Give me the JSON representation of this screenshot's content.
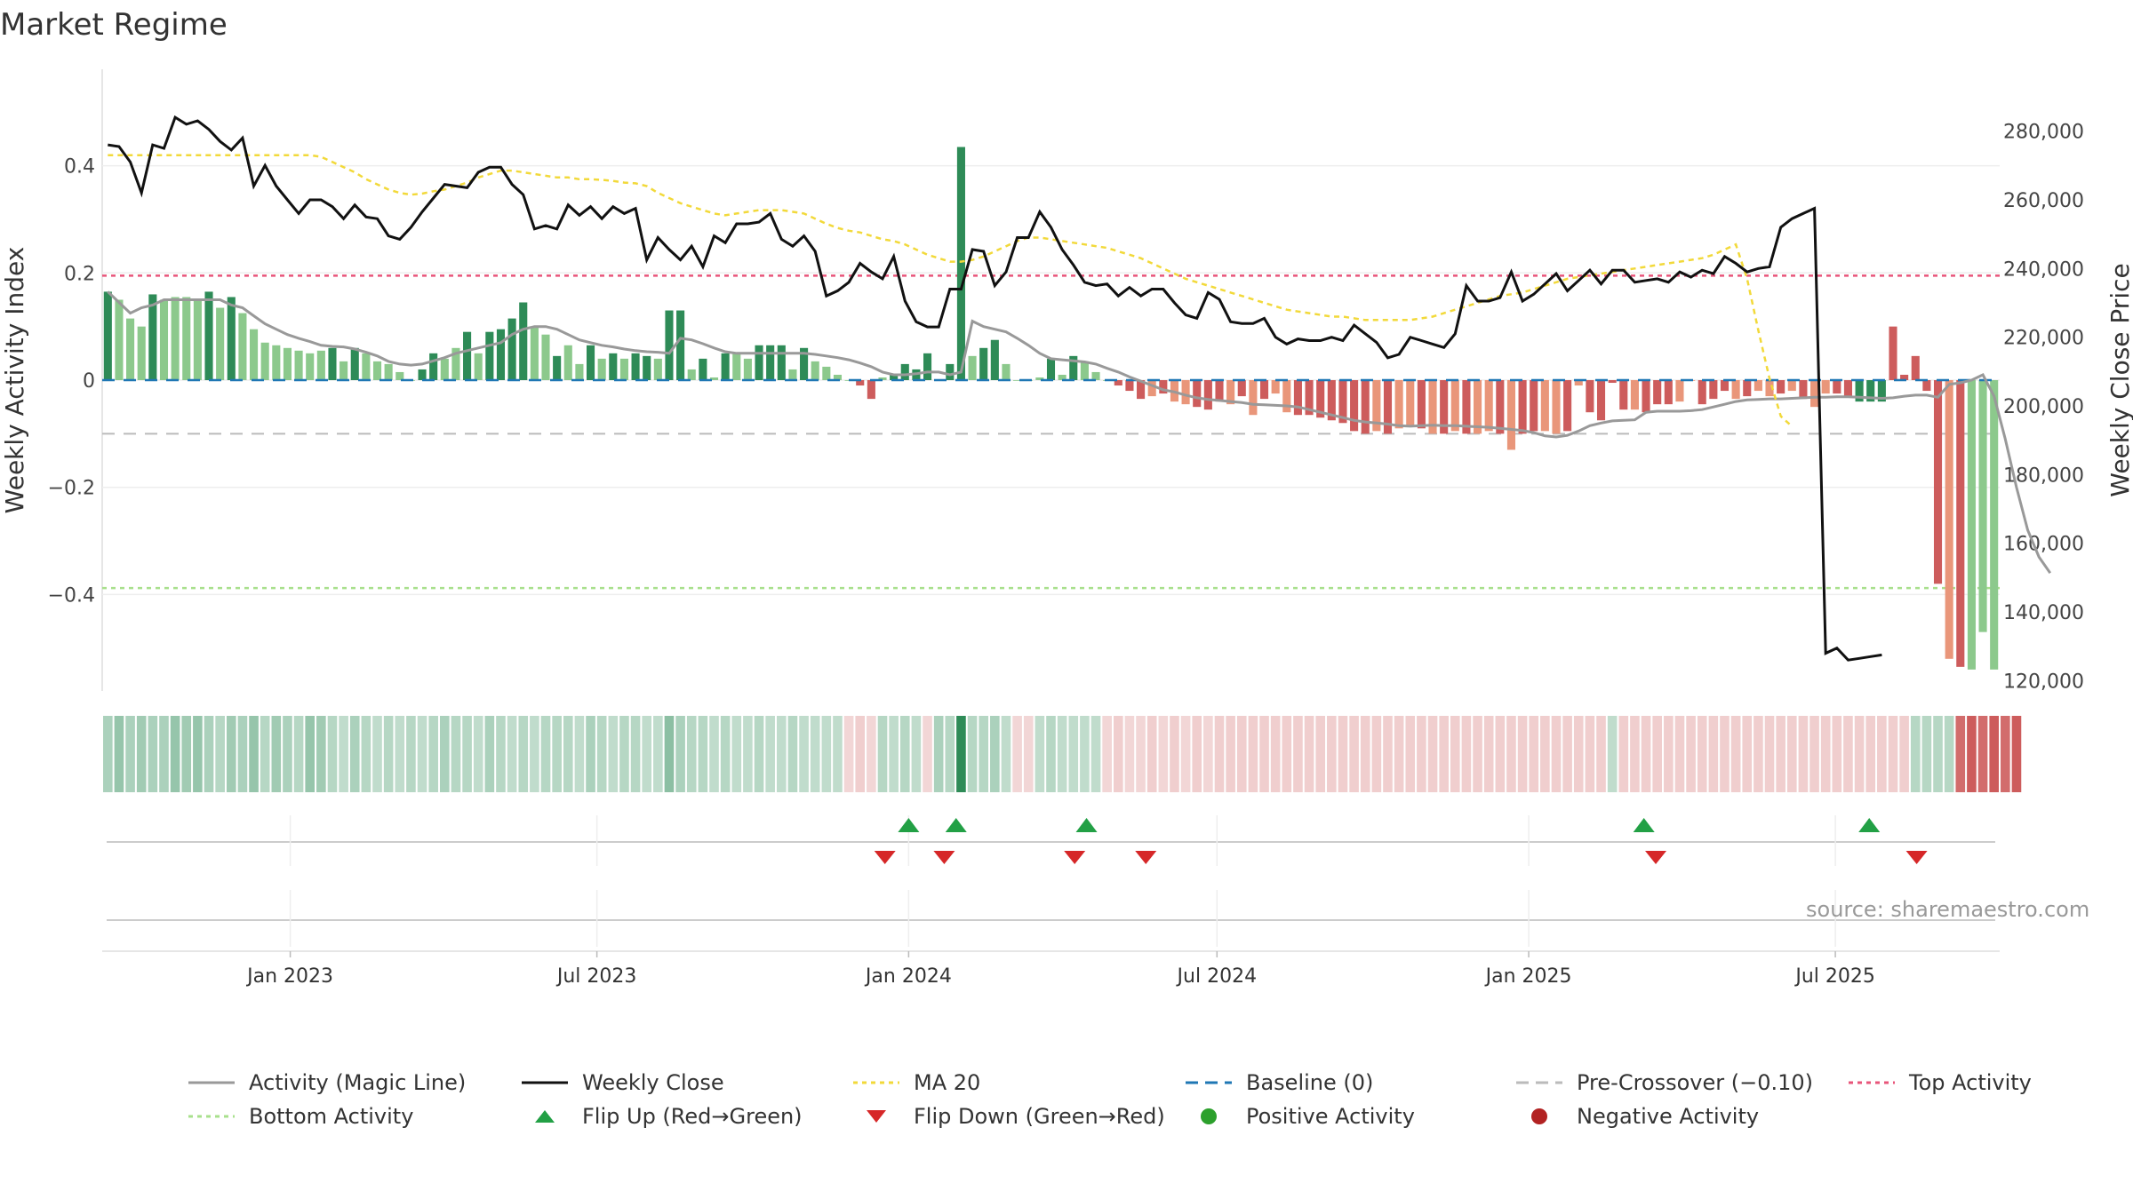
{
  "title": "Market Regime",
  "source_text": "source: sharemaestro.com",
  "colors": {
    "green_dark": "#2e8b57",
    "green_light": "#8cc98c",
    "red_dark": "#cd5c5c",
    "red_light": "#e9967a",
    "magic_line": "#999999",
    "close_line": "#111111",
    "ma_line": "#f2d93a",
    "baseline": "#1f77b4",
    "precross": "#bbbbbb",
    "top": "#e8557a",
    "bottom": "#a8e08c",
    "flip_up": "#22a045",
    "flip_down": "#d62728",
    "positive": "#2ca02c",
    "negative": "#b22222"
  },
  "chart_data": {
    "type": "bar",
    "title": "Market Regime",
    "ylabel_left": "Weekly Activity Index",
    "ylabel_right": "Weekly Close Price",
    "ylim_left": [
      -0.58,
      0.58
    ],
    "ylim_right": [
      117000,
      298000
    ],
    "y_ticks_left": [
      0.4,
      0.2,
      0,
      -0.2,
      -0.4
    ],
    "y_tick_labels_left": [
      "0.4",
      "0.2",
      "0",
      "−0.2",
      "−0.4"
    ],
    "y_ticks_right": [
      280000,
      260000,
      240000,
      220000,
      200000,
      180000,
      160000,
      140000,
      120000
    ],
    "y_tick_labels_right": [
      "280,000",
      "260,000",
      "240,000",
      "220,000",
      "200,000",
      "180,000",
      "160,000",
      "140,000",
      "120,000"
    ],
    "x_start": "2022-09-12",
    "x_end": "2025-10-06",
    "x_tick_labels": [
      "Jan 2023",
      "Jul 2023",
      "Jan 2024",
      "Jul 2024",
      "Jan 2025",
      "Jul 2025"
    ],
    "x_ticks": [
      "2023-01-01",
      "2023-07-01",
      "2024-01-01",
      "2024-07-01",
      "2025-01-01",
      "2025-07-01"
    ],
    "reference_lines": {
      "baseline": 0,
      "pre_crossover": -0.1,
      "top_activity": 0.195,
      "bottom_activity": -0.388
    },
    "activity_index": [
      0.165,
      0.15,
      0.115,
      0.1,
      0.16,
      0.15,
      0.155,
      0.155,
      0.15,
      0.165,
      0.135,
      0.155,
      0.125,
      0.095,
      0.07,
      0.065,
      0.06,
      0.055,
      0.05,
      0.055,
      0.06,
      0.035,
      0.06,
      0.05,
      0.035,
      0.03,
      0.015,
      0.0,
      0.02,
      0.05,
      0.04,
      0.06,
      0.09,
      0.05,
      0.09,
      0.095,
      0.115,
      0.145,
      0.1,
      0.085,
      0.045,
      0.065,
      0.03,
      0.065,
      0.04,
      0.05,
      0.04,
      0.05,
      0.045,
      0.04,
      0.13,
      0.13,
      0.02,
      0.04,
      0.005,
      0.05,
      0.05,
      0.04,
      0.065,
      0.065,
      0.065,
      0.02,
      0.06,
      0.035,
      0.025,
      0.01,
      0.0,
      -0.01,
      -0.035,
      0.005,
      0.01,
      0.03,
      0.02,
      0.05,
      0.0,
      0.03,
      0.435,
      0.045,
      0.06,
      0.075,
      0.03,
      0.0,
      0.0,
      0.005,
      0.04,
      0.01,
      0.045,
      0.035,
      0.015,
      0.0,
      -0.01,
      -0.02,
      -0.035,
      -0.03,
      -0.025,
      -0.04,
      -0.045,
      -0.05,
      -0.055,
      -0.04,
      -0.045,
      -0.03,
      -0.065,
      -0.035,
      -0.025,
      -0.06,
      -0.065,
      -0.065,
      -0.07,
      -0.075,
      -0.08,
      -0.095,
      -0.1,
      -0.095,
      -0.1,
      -0.09,
      -0.085,
      -0.09,
      -0.1,
      -0.1,
      -0.095,
      -0.1,
      -0.1,
      -0.095,
      -0.1,
      -0.13,
      -0.1,
      -0.095,
      -0.095,
      -0.1,
      -0.095,
      -0.01,
      -0.06,
      -0.075,
      -0.005,
      -0.055,
      -0.055,
      -0.06,
      -0.045,
      -0.045,
      -0.04,
      0.0,
      -0.045,
      -0.035,
      -0.02,
      -0.035,
      -0.03,
      -0.02,
      -0.03,
      -0.025,
      -0.02,
      -0.035,
      -0.05,
      -0.025,
      -0.025,
      -0.03,
      -0.04,
      -0.04,
      -0.04,
      0.1,
      0.01,
      0.045,
      -0.02,
      -0.38,
      -0.52,
      -0.535,
      -0.54,
      -0.47,
      -0.54
    ],
    "activity_type": [
      "p",
      "l",
      "l",
      "l",
      "p",
      "l",
      "l",
      "l",
      "l",
      "p",
      "l",
      "p",
      "l",
      "l",
      "l",
      "l",
      "l",
      "l",
      "l",
      "l",
      "p",
      "l",
      "p",
      "l",
      "l",
      "l",
      "l",
      "l",
      "p",
      "p",
      "l",
      "l",
      "p",
      "l",
      "p",
      "p",
      "p",
      "p",
      "l",
      "l",
      "p",
      "l",
      "l",
      "p",
      "l",
      "p",
      "l",
      "p",
      "p",
      "l",
      "p",
      "p",
      "l",
      "p",
      "l",
      "p",
      "l",
      "l",
      "p",
      "p",
      "p",
      "l",
      "p",
      "l",
      "l",
      "l",
      "l",
      "n",
      "n",
      "l",
      "p",
      "p",
      "p",
      "p",
      "p",
      "p",
      "p",
      "l",
      "p",
      "p",
      "l",
      "l",
      "l",
      "l",
      "p",
      "l",
      "p",
      "l",
      "l",
      "l",
      "n",
      "n",
      "n",
      "m",
      "n",
      "m",
      "m",
      "n",
      "n",
      "n",
      "m",
      "n",
      "m",
      "n",
      "m",
      "m",
      "n",
      "n",
      "n",
      "n",
      "n",
      "n",
      "n",
      "m",
      "n",
      "m",
      "m",
      "n",
      "m",
      "n",
      "m",
      "n",
      "m",
      "m",
      "n",
      "m",
      "n",
      "n",
      "m",
      "m",
      "n",
      "m",
      "n",
      "n",
      "n",
      "n",
      "m",
      "n",
      "n",
      "n",
      "m",
      "m",
      "n",
      "n",
      "n",
      "m",
      "n",
      "m",
      "m",
      "n",
      "m",
      "n",
      "m",
      "m",
      "n",
      "n",
      "p",
      "p",
      "p",
      "n",
      "n",
      "n",
      "n",
      "n",
      "m",
      "n"
    ],
    "magic_line": [
      0.165,
      0.145,
      0.125,
      0.135,
      0.14,
      0.15,
      0.15,
      0.15,
      0.15,
      0.15,
      0.15,
      0.14,
      0.135,
      0.12,
      0.105,
      0.095,
      0.085,
      0.078,
      0.072,
      0.065,
      0.063,
      0.062,
      0.058,
      0.052,
      0.045,
      0.035,
      0.03,
      0.028,
      0.03,
      0.036,
      0.042,
      0.05,
      0.055,
      0.06,
      0.065,
      0.07,
      0.085,
      0.095,
      0.1,
      0.1,
      0.095,
      0.085,
      0.075,
      0.07,
      0.065,
      0.062,
      0.058,
      0.055,
      0.053,
      0.052,
      0.05,
      0.078,
      0.075,
      0.068,
      0.06,
      0.053,
      0.05,
      0.05,
      0.05,
      0.05,
      0.05,
      0.05,
      0.05,
      0.048,
      0.045,
      0.042,
      0.038,
      0.032,
      0.025,
      0.015,
      0.01,
      0.01,
      0.012,
      0.015,
      0.015,
      0.01,
      0.015,
      0.11,
      0.1,
      0.095,
      0.09,
      0.078,
      0.065,
      0.05,
      0.04,
      0.038,
      0.036,
      0.034,
      0.03,
      0.022,
      0.015,
      0.006,
      -0.002,
      -0.01,
      -0.018,
      -0.022,
      -0.028,
      -0.033,
      -0.036,
      -0.038,
      -0.04,
      -0.042,
      -0.045,
      -0.046,
      -0.047,
      -0.048,
      -0.05,
      -0.055,
      -0.06,
      -0.065,
      -0.07,
      -0.075,
      -0.078,
      -0.08,
      -0.082,
      -0.085,
      -0.086,
      -0.085,
      -0.084,
      -0.085,
      -0.085,
      -0.086,
      -0.087,
      -0.088,
      -0.09,
      -0.092,
      -0.094,
      -0.098,
      -0.104,
      -0.106,
      -0.103,
      -0.095,
      -0.085,
      -0.08,
      -0.076,
      -0.075,
      -0.074,
      -0.06,
      -0.058,
      -0.058,
      -0.058,
      -0.057,
      -0.055,
      -0.05,
      -0.045,
      -0.04,
      -0.037,
      -0.036,
      -0.035,
      -0.035,
      -0.034,
      -0.033,
      -0.032,
      -0.032,
      -0.031,
      -0.031,
      -0.032,
      -0.033,
      -0.034,
      -0.033,
      -0.03,
      -0.028,
      -0.028,
      -0.032,
      -0.008,
      -0.005,
      0.0,
      0.01,
      -0.03,
      -0.11,
      -0.2,
      -0.28,
      -0.33,
      -0.36
    ],
    "weekly_close": [
      276000,
      275500,
      271000,
      262000,
      276000,
      275000,
      284000,
      282000,
      283000,
      280500,
      277000,
      274500,
      278000,
      264000,
      270000,
      264000,
      260000,
      256000,
      260000,
      260000,
      258000,
      254500,
      258500,
      255000,
      254500,
      249500,
      248500,
      252000,
      256500,
      260500,
      264500,
      264000,
      263500,
      268000,
      269500,
      269500,
      264500,
      261500,
      251500,
      252500,
      251500,
      258500,
      255500,
      258000,
      254500,
      258000,
      256000,
      257500,
      242500,
      249000,
      245500,
      242500,
      246500,
      240500,
      249500,
      247500,
      253000,
      253000,
      253500,
      256000,
      248500,
      246500,
      249500,
      245000,
      232000,
      233500,
      236000,
      241500,
      239000,
      237000,
      243500,
      230500,
      224500,
      223000,
      223000,
      234000,
      234000,
      245500,
      245000,
      235000,
      239000,
      249000,
      249000,
      256500,
      252000,
      245500,
      241000,
      236000,
      235000,
      235500,
      232000,
      234500,
      232000,
      234000,
      234000,
      230000,
      226500,
      225500,
      233000,
      231000,
      224500,
      224000,
      224000,
      225500,
      220000,
      218000,
      219500,
      219000,
      219000,
      220000,
      219000,
      223500,
      221000,
      218500,
      214000,
      215000,
      220000,
      219000,
      218000,
      217000,
      221000,
      235000,
      230500,
      230500,
      231500,
      239000,
      230500,
      232500,
      235500,
      238500,
      233500,
      236500,
      239500,
      235500,
      239500,
      239500,
      236000,
      236500,
      237000,
      236000,
      239000,
      237500,
      239500,
      238500,
      243500,
      241500,
      239000,
      240000,
      240500,
      252000,
      254500,
      256000,
      257500,
      128000,
      129500,
      126000,
      126500,
      127000,
      127500
    ],
    "ma20": [
      273000,
      273000,
      273000,
      273000,
      273000,
      273000,
      273000,
      273000,
      273000,
      273000,
      273000,
      273000,
      273000,
      273000,
      273000,
      273000,
      273000,
      273000,
      273000,
      272500,
      271000,
      269500,
      268000,
      266000,
      264500,
      263000,
      262000,
      261500,
      261800,
      262500,
      263000,
      264000,
      265000,
      266500,
      267500,
      268500,
      268500,
      268000,
      267500,
      267000,
      266500,
      266500,
      266000,
      266000,
      265800,
      265500,
      265000,
      264800,
      264000,
      262000,
      260500,
      259000,
      258000,
      257000,
      256000,
      255500,
      256000,
      256500,
      257000,
      257000,
      257000,
      256500,
      256000,
      254500,
      253000,
      251800,
      251000,
      250500,
      249500,
      248500,
      248000,
      247000,
      245500,
      244000,
      243000,
      242000,
      242000,
      242500,
      243500,
      245000,
      246500,
      248000,
      249000,
      249000,
      248500,
      248000,
      247500,
      247000,
      246500,
      246000,
      245000,
      244000,
      243000,
      241500,
      240000,
      238500,
      237000,
      236000,
      235000,
      234000,
      233000,
      232000,
      231000,
      230000,
      229000,
      228000,
      227500,
      227000,
      226500,
      226000,
      226000,
      225500,
      225000,
      225000,
      225000,
      225000,
      225000,
      225500,
      226000,
      227000,
      228000,
      229000,
      230000,
      231000,
      232000,
      232500,
      233000,
      234000,
      235000,
      236000,
      237000,
      237500,
      238000,
      238500,
      239000,
      239500,
      240000,
      240500,
      241000,
      241500,
      242000,
      242500,
      243000,
      244000,
      245500,
      247000,
      237000,
      222000,
      208000,
      197000,
      194000
    ],
    "band": [
      0.4,
      0.5,
      0.4,
      0.45,
      0.4,
      0.4,
      0.5,
      0.45,
      0.5,
      0.4,
      0.35,
      0.45,
      0.4,
      0.5,
      0.35,
      0.45,
      0.4,
      0.35,
      0.5,
      0.45,
      0.35,
      0.3,
      0.4,
      0.35,
      0.3,
      0.35,
      0.3,
      0.35,
      0.3,
      0.35,
      0.4,
      0.35,
      0.35,
      0.3,
      0.4,
      0.35,
      0.3,
      0.35,
      0.3,
      0.35,
      0.35,
      0.35,
      0.3,
      0.4,
      0.35,
      0.3,
      0.35,
      0.35,
      0.3,
      0.3,
      0.55,
      0.4,
      0.35,
      0.35,
      0.3,
      0.35,
      0.3,
      0.3,
      0.35,
      0.3,
      0.3,
      0.35,
      0.3,
      0.3,
      0.3,
      0.3,
      -0.25,
      -0.3,
      -0.25,
      0.35,
      0.3,
      0.35,
      0.3,
      -0.25,
      0.4,
      0.35,
      1.0,
      0.35,
      0.35,
      0.4,
      0.3,
      -0.25,
      -0.25,
      0.3,
      0.35,
      0.3,
      0.3,
      0.3,
      0.3,
      -0.25,
      -0.3,
      -0.25,
      -0.25,
      -0.3,
      -0.25,
      -0.3,
      -0.25,
      -0.3,
      -0.25,
      -0.3,
      -0.3,
      -0.3,
      -0.3,
      -0.3,
      -0.3,
      -0.3,
      -0.3,
      -0.3,
      -0.3,
      -0.3,
      -0.3,
      -0.3,
      -0.3,
      -0.3,
      -0.3,
      -0.3,
      -0.3,
      -0.3,
      -0.3,
      -0.3,
      -0.3,
      -0.3,
      -0.3,
      -0.3,
      -0.3,
      -0.3,
      -0.3,
      -0.3,
      -0.3,
      -0.3,
      -0.3,
      -0.3,
      -0.3,
      -0.3,
      0.3,
      -0.3,
      -0.3,
      -0.3,
      -0.3,
      -0.3,
      -0.3,
      -0.3,
      -0.3,
      -0.3,
      -0.3,
      -0.3,
      -0.3,
      -0.3,
      -0.3,
      -0.3,
      -0.3,
      -0.3,
      -0.3,
      -0.3,
      -0.3,
      -0.3,
      -0.3,
      -0.3,
      -0.3,
      -0.3,
      -0.3,
      0.35,
      0.35,
      0.35,
      0.35,
      -0.9,
      -1.0,
      -0.9,
      -1.0,
      -0.9,
      -1.0
    ],
    "flip_up": [
      "2024-01-01",
      "2024-01-29",
      "2024-04-15",
      "2025-03-10",
      "2025-07-21"
    ],
    "flip_down": [
      "2023-12-18",
      "2024-01-22",
      "2024-04-08",
      "2024-05-20",
      "2025-03-17",
      "2025-08-18"
    ]
  },
  "legend": {
    "row1": [
      "Activity (Magic Line)",
      "Weekly Close",
      "MA 20",
      "Baseline (0)",
      "Pre-Crossover (−0.10)",
      "Top Activity"
    ],
    "row2": [
      "Bottom Activity",
      "Flip Up (Red→Green)",
      "Flip Down (Green→Red)",
      "Positive Activity",
      "Negative Activity"
    ]
  }
}
